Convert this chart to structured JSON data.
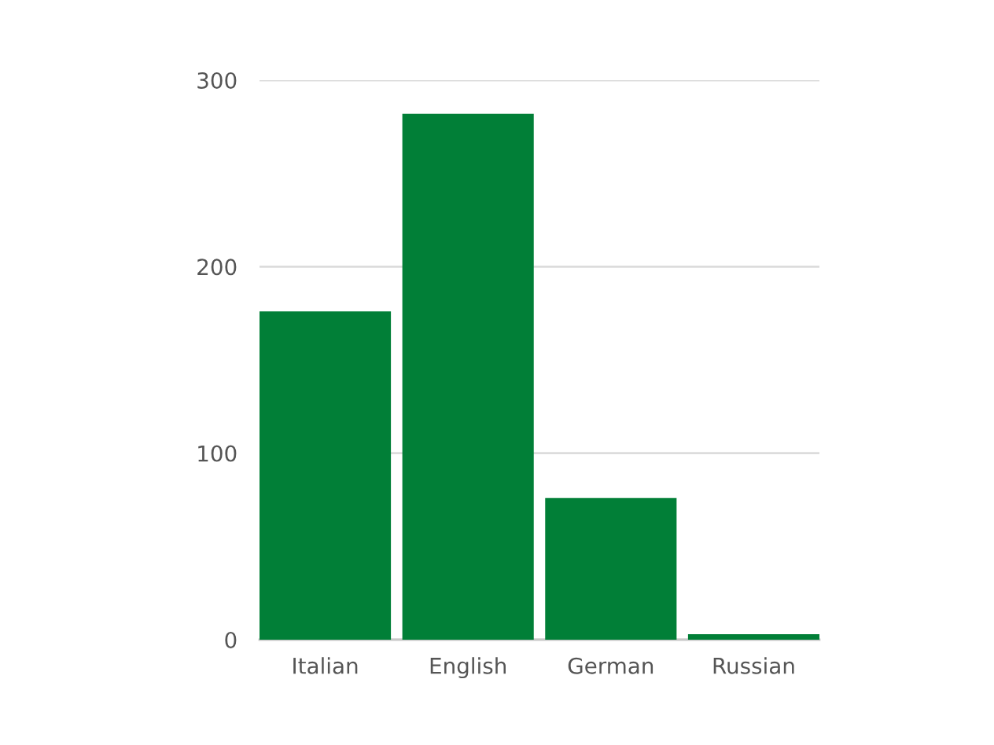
{
  "chart_data": {
    "type": "bar",
    "categories": [
      "Italian",
      "English",
      "German",
      "Russian"
    ],
    "values": [
      176,
      282,
      76,
      3
    ],
    "color": "#017f37",
    "ylim": [
      0,
      300
    ],
    "yticks": [
      0,
      100,
      200,
      300
    ],
    "grid": "y",
    "legend": false
  }
}
